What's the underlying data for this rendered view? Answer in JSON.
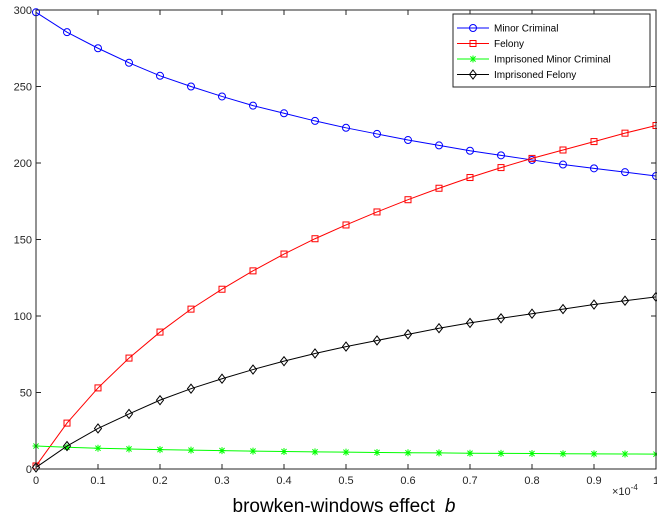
{
  "chart_data": {
    "type": "line",
    "title": "",
    "xlabel": "browken-windows effect",
    "xlabel_symbol": "b",
    "x_exponent_label": "×10",
    "x_exponent_power": "-4",
    "ylabel": "",
    "xlim": [
      0,
      1
    ],
    "ylim": [
      0,
      300
    ],
    "grid": false,
    "legend_position": "top-right",
    "x_ticks": [
      "0",
      "0.1",
      "0.2",
      "0.3",
      "0.4",
      "0.5",
      "0.6",
      "0.7",
      "0.8",
      "0.9",
      "1"
    ],
    "y_ticks": [
      "0",
      "50",
      "100",
      "150",
      "200",
      "250",
      "300"
    ],
    "x": [
      0,
      0.05,
      0.1,
      0.15,
      0.2,
      0.25,
      0.3,
      0.35,
      0.4,
      0.45,
      0.5,
      0.55,
      0.6,
      0.65,
      0.7,
      0.75,
      0.8,
      0.85,
      0.9,
      0.95,
      1.0
    ],
    "series": [
      {
        "name": "Minor Criminal",
        "color": "#0000ff",
        "marker": "circle",
        "values": [
          298.5,
          285.5,
          275,
          265.5,
          257,
          250,
          243.5,
          237.5,
          232.5,
          227.5,
          223,
          219,
          215,
          211.5,
          208,
          205,
          202,
          199,
          196.5,
          194,
          191.5
        ]
      },
      {
        "name": "Felony",
        "color": "#ff0000",
        "marker": "square",
        "values": [
          2,
          30,
          53,
          72.5,
          89.5,
          104.5,
          117.5,
          129.5,
          140.5,
          150.5,
          159.5,
          168,
          176,
          183.5,
          190.5,
          197,
          203,
          208.5,
          214,
          219.5,
          224.5
        ]
      },
      {
        "name": "Imprisoned Minor Criminal",
        "color": "#00ff00",
        "marker": "asterisk",
        "values": [
          15,
          14.2,
          13.6,
          13.1,
          12.7,
          12.3,
          12,
          11.7,
          11.4,
          11.2,
          11,
          10.8,
          10.6,
          10.5,
          10.3,
          10.2,
          10.1,
          10,
          9.9,
          9.8,
          9.7
        ]
      },
      {
        "name": "Imprisoned Felony",
        "color": "#000000",
        "marker": "diamond",
        "values": [
          1,
          15,
          26.5,
          36,
          45,
          52.5,
          59,
          65,
          70.5,
          75.5,
          80,
          84,
          88,
          92,
          95.5,
          98.5,
          101.5,
          104.5,
          107.5,
          110,
          112.5
        ]
      }
    ]
  }
}
